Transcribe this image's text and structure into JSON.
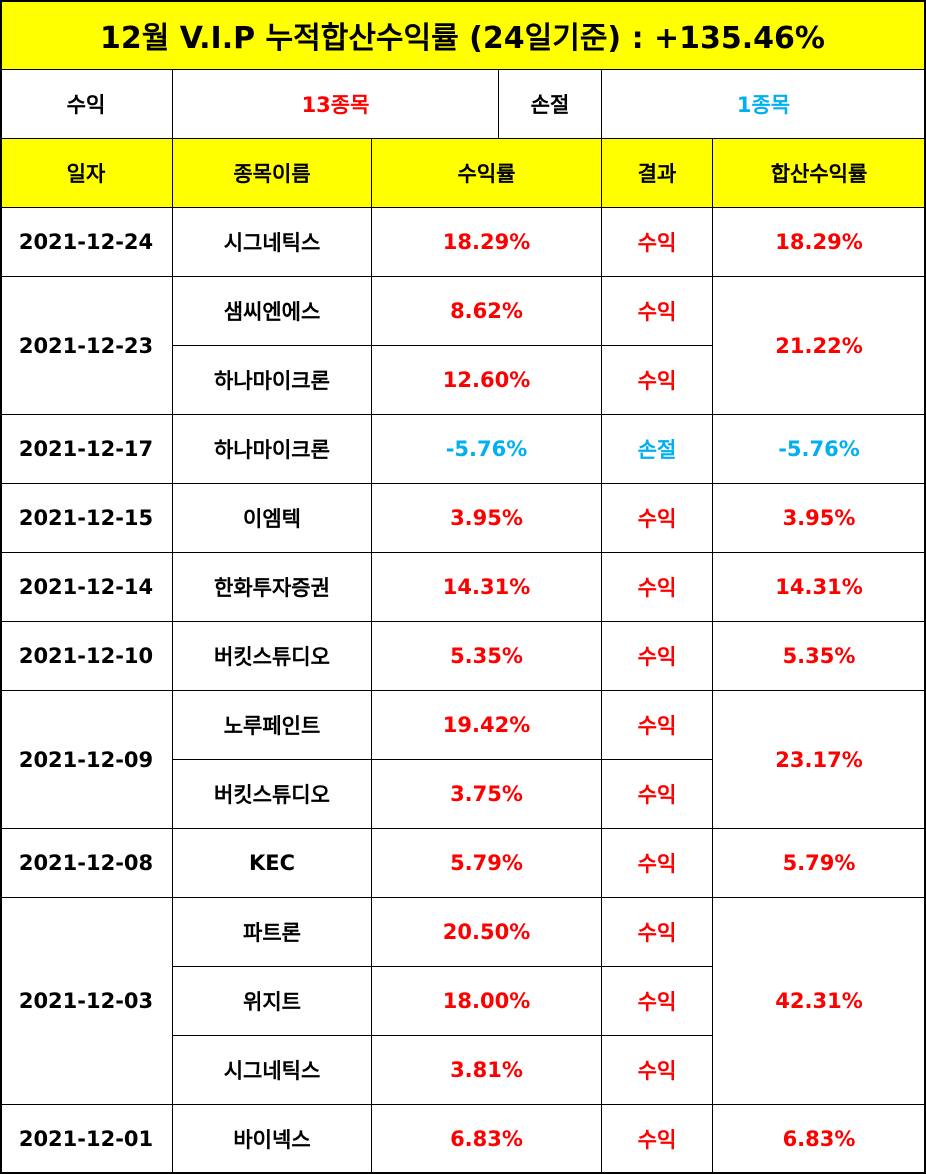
{
  "title": "12월 V.I.P 누적합산수익률 (24일기준) : +135.46%",
  "summary": {
    "profit_label": "수익",
    "profit_count": "13종목",
    "loss_label": "손절",
    "loss_count": "1종목"
  },
  "headers": {
    "date": "일자",
    "stock": "종목이름",
    "return": "수익률",
    "result": "결과",
    "combined": "합산수익률"
  },
  "colors": {
    "highlight": "#ffff00",
    "profit": "#ff0000",
    "loss": "#00b0f0",
    "grid": "#000000"
  },
  "groups": [
    {
      "date": "2021-12-24",
      "combined": "18.29%",
      "rows": [
        {
          "stock": "시그네틱스",
          "return": "18.29%",
          "result": "수익"
        }
      ]
    },
    {
      "date": "2021-12-23",
      "combined": "21.22%",
      "rows": [
        {
          "stock": "샘씨엔에스",
          "return": "8.62%",
          "result": "수익"
        },
        {
          "stock": "하나마이크론",
          "return": "12.60%",
          "result": "수익"
        }
      ]
    },
    {
      "date": "2021-12-17",
      "combined": "-5.76%",
      "rows": [
        {
          "stock": "하나마이크론",
          "return": "-5.76%",
          "result": "손절"
        }
      ]
    },
    {
      "date": "2021-12-15",
      "combined": "3.95%",
      "rows": [
        {
          "stock": "이엠텍",
          "return": "3.95%",
          "result": "수익"
        }
      ]
    },
    {
      "date": "2021-12-14",
      "combined": "14.31%",
      "rows": [
        {
          "stock": "한화투자증권",
          "return": "14.31%",
          "result": "수익"
        }
      ]
    },
    {
      "date": "2021-12-10",
      "combined": "5.35%",
      "rows": [
        {
          "stock": "버킷스튜디오",
          "return": "5.35%",
          "result": "수익"
        }
      ]
    },
    {
      "date": "2021-12-09",
      "combined": "23.17%",
      "rows": [
        {
          "stock": "노루페인트",
          "return": "19.42%",
          "result": "수익"
        },
        {
          "stock": "버킷스튜디오",
          "return": "3.75%",
          "result": "수익"
        }
      ]
    },
    {
      "date": "2021-12-08",
      "combined": "5.79%",
      "rows": [
        {
          "stock": "KEC",
          "return": "5.79%",
          "result": "수익"
        }
      ]
    },
    {
      "date": "2021-12-03",
      "combined": "42.31%",
      "rows": [
        {
          "stock": "파트론",
          "return": "20.50%",
          "result": "수익"
        },
        {
          "stock": "위지트",
          "return": "18.00%",
          "result": "수익"
        },
        {
          "stock": "시그네틱스",
          "return": "3.81%",
          "result": "수익"
        }
      ]
    },
    {
      "date": "2021-12-01",
      "combined": "6.83%",
      "rows": [
        {
          "stock": "바이넥스",
          "return": "6.83%",
          "result": "수익"
        }
      ]
    }
  ]
}
